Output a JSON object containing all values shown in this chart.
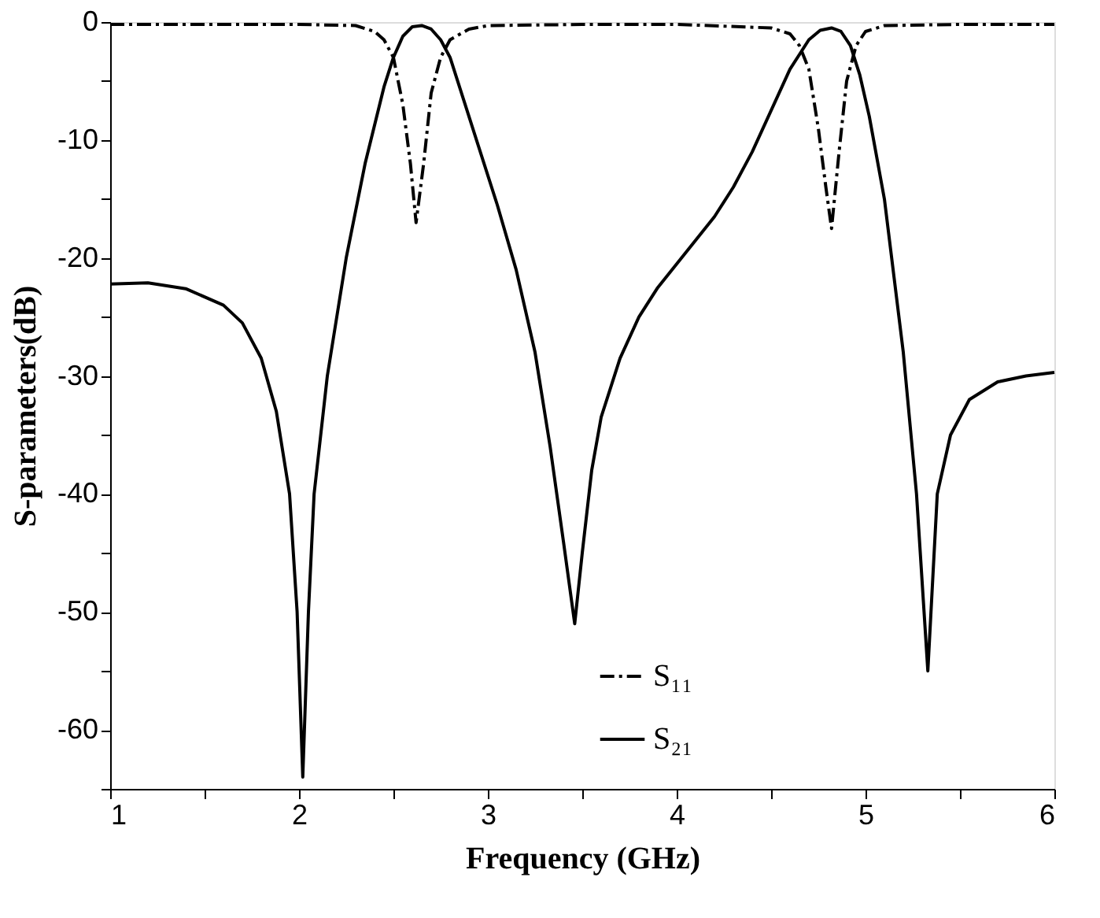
{
  "chart_data": {
    "type": "line",
    "xlabel": "Frequency (GHz)",
    "ylabel": "S-parameters(dB)",
    "xlim": [
      1,
      6
    ],
    "ylim": [
      -65,
      0
    ],
    "xticks": [
      1,
      {
        "value": 1.5,
        "label": null
      },
      2,
      {
        "value": 2.5,
        "label": null
      },
      3,
      {
        "value": 3.5,
        "label": null
      },
      4,
      {
        "value": 4.5,
        "label": null
      },
      5,
      {
        "value": 5.5,
        "label": null
      },
      6
    ],
    "yticks": [
      {
        "value": -65,
        "label": null
      },
      -60,
      {
        "value": -55,
        "label": null
      },
      -50,
      {
        "value": -45,
        "label": null
      },
      -40,
      {
        "value": -35,
        "label": null
      },
      -30,
      {
        "value": -25,
        "label": null
      },
      -20,
      {
        "value": -15,
        "label": null
      },
      -10,
      {
        "value": -5,
        "label": null
      },
      0
    ],
    "grid": false,
    "legend": "bottom right",
    "marker": "none",
    "series": [
      {
        "name": "S₁₁",
        "color": "#000000",
        "line_style": "dashed",
        "x": [
          1.0,
          1.5,
          2.0,
          2.3,
          2.4,
          2.45,
          2.5,
          2.55,
          2.59,
          2.62,
          2.66,
          2.7,
          2.75,
          2.8,
          2.9,
          3.0,
          3.5,
          4.0,
          4.5,
          4.6,
          4.65,
          4.7,
          4.75,
          4.79,
          4.82,
          4.86,
          4.9,
          4.95,
          5.0,
          5.1,
          5.5,
          6.0
        ],
        "values": [
          -0.2,
          -0.2,
          -0.2,
          -0.3,
          -0.8,
          -1.5,
          -3,
          -7,
          -12,
          -17,
          -12,
          -6,
          -3,
          -1.5,
          -0.6,
          -0.3,
          -0.2,
          -0.2,
          -0.5,
          -1,
          -2,
          -4,
          -9,
          -14,
          -17.5,
          -11,
          -5,
          -2,
          -0.8,
          -0.3,
          -0.2,
          -0.2
        ]
      },
      {
        "name": "S₂₁",
        "color": "#000000",
        "line_style": "solid",
        "x": [
          1.0,
          1.2,
          1.4,
          1.6,
          1.7,
          1.8,
          1.88,
          1.95,
          1.99,
          2.02,
          2.05,
          2.08,
          2.15,
          2.25,
          2.35,
          2.45,
          2.5,
          2.55,
          2.6,
          2.65,
          2.7,
          2.75,
          2.8,
          2.87,
          2.95,
          3.05,
          3.15,
          3.25,
          3.33,
          3.4,
          3.46,
          3.5,
          3.55,
          3.6,
          3.7,
          3.8,
          3.9,
          4.0,
          4.1,
          4.2,
          4.3,
          4.4,
          4.5,
          4.6,
          4.7,
          4.76,
          4.82,
          4.87,
          4.92,
          4.97,
          5.02,
          5.1,
          5.2,
          5.27,
          5.33,
          5.38,
          5.45,
          5.55,
          5.7,
          5.85,
          6.0
        ],
        "values": [
          -22.2,
          -22.1,
          -22.6,
          -24.0,
          -25.5,
          -28.5,
          -33,
          -40,
          -50,
          -64,
          -50,
          -40,
          -30,
          -20,
          -12,
          -5.5,
          -3,
          -1.2,
          -0.4,
          -0.3,
          -0.6,
          -1.5,
          -3,
          -6.5,
          -10.5,
          -15.5,
          -21,
          -28,
          -36,
          -44,
          -51,
          -45,
          -38,
          -33.5,
          -28.5,
          -25,
          -22.5,
          -20.5,
          -18.5,
          -16.5,
          -14,
          -11,
          -7.5,
          -4,
          -1.5,
          -0.7,
          -0.5,
          -0.8,
          -2,
          -4.5,
          -8,
          -15,
          -28,
          -40,
          -55,
          -40,
          -35,
          -32,
          -30.5,
          -30,
          -29.7
        ]
      }
    ]
  }
}
